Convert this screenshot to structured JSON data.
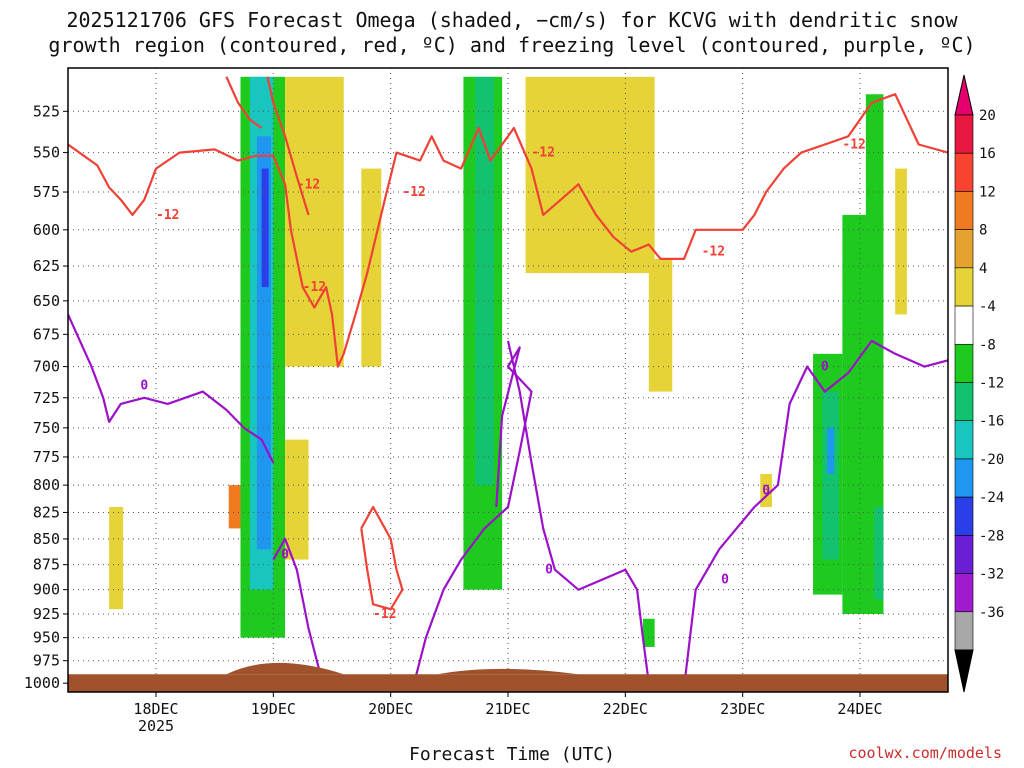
{
  "title_line1": "2025121706 GFS Forecast Omega (shaded, −cm/s) for KCVG with dendritic snow",
  "title_line2": "growth region (contoured, red, ºC) and freezing level (contoured, purple, ºC)",
  "credit": "coolwx.com/models",
  "chart_data": {
    "type": "heatmap",
    "xlabel": "Forecast Time (UTC)",
    "ylabel": "",
    "x_ticks": [
      {
        "label": "18DEC",
        "sub": "2025",
        "day": 1.0
      },
      {
        "label": "19DEC",
        "sub": "",
        "day": 2.0
      },
      {
        "label": "20DEC",
        "sub": "",
        "day": 3.0
      },
      {
        "label": "21DEC",
        "sub": "",
        "day": 4.0
      },
      {
        "label": "22DEC",
        "sub": "",
        "day": 5.0
      },
      {
        "label": "23DEC",
        "sub": "",
        "day": 6.0
      },
      {
        "label": "24DEC",
        "sub": "",
        "day": 7.0
      }
    ],
    "xlim_days_from_17DEC00Z": [
      0.25,
      7.75
    ],
    "y_ticks_hPa": [
      525,
      550,
      575,
      600,
      625,
      650,
      675,
      700,
      725,
      750,
      775,
      800,
      825,
      850,
      875,
      900,
      925,
      950,
      975,
      1000
    ],
    "ylim_hPa": [
      500,
      1010
    ],
    "y_scale": "log pressure",
    "grid": "dotted",
    "colorbar": {
      "labels": [
        "20",
        "16",
        "12",
        "8",
        "4",
        "-4",
        "-8",
        "-12",
        "-16",
        "-20",
        "-24",
        "-28",
        "-32",
        "-36"
      ],
      "colors": [
        "#e8173f",
        "#f7432f",
        "#f07a20",
        "#e4a22e",
        "#e6d337",
        "#ffffff",
        "#1fca1f",
        "#13c26e",
        "#19c6bf",
        "#1f97f0",
        "#2a3fe8",
        "#6a1fd6",
        "#a01bcf",
        "#a8a8a8"
      ],
      "top_arrow_color": "#e6006e",
      "bottom_arrow_color": "#000000"
    },
    "omega_regions": [
      {
        "color": "#1fca1f",
        "t0": 1.72,
        "t1": 2.1,
        "p0": 505,
        "p1": 950
      },
      {
        "color": "#19c6bf",
        "t0": 1.8,
        "t1": 2.0,
        "p0": 505,
        "p1": 900
      },
      {
        "color": "#1f97f0",
        "t0": 1.86,
        "t1": 1.98,
        "p0": 540,
        "p1": 860
      },
      {
        "color": "#2a3fe8",
        "t0": 1.9,
        "t1": 1.96,
        "p0": 560,
        "p1": 640
      },
      {
        "color": "#e6d337",
        "t0": 2.1,
        "t1": 2.6,
        "p0": 505,
        "p1": 700
      },
      {
        "color": "#e6d337",
        "t0": 2.75,
        "t1": 2.92,
        "p0": 560,
        "p1": 700
      },
      {
        "color": "#1fca1f",
        "t0": 3.62,
        "t1": 3.95,
        "p0": 505,
        "p1": 900
      },
      {
        "color": "#13c26e",
        "t0": 3.72,
        "t1": 3.88,
        "p0": 505,
        "p1": 800
      },
      {
        "color": "#e6d337",
        "t0": 4.15,
        "t1": 5.25,
        "p0": 505,
        "p1": 630
      },
      {
        "color": "#e6d337",
        "t0": 5.2,
        "t1": 5.4,
        "p0": 620,
        "p1": 720
      },
      {
        "color": "#1fca1f",
        "t0": 6.6,
        "t1": 6.85,
        "p0": 690,
        "p1": 905
      },
      {
        "color": "#13c26e",
        "t0": 6.68,
        "t1": 6.82,
        "p0": 720,
        "p1": 870
      },
      {
        "color": "#1f97f0",
        "t0": 6.72,
        "t1": 6.78,
        "p0": 750,
        "p1": 790
      },
      {
        "color": "#1fca1f",
        "t0": 6.85,
        "t1": 7.2,
        "p0": 590,
        "p1": 925
      },
      {
        "color": "#13c26e",
        "t0": 7.12,
        "t1": 7.2,
        "p0": 820,
        "p1": 910
      },
      {
        "color": "#1fca1f",
        "t0": 7.05,
        "t1": 7.2,
        "p0": 515,
        "p1": 600
      },
      {
        "color": "#e6d337",
        "t0": 7.3,
        "t1": 7.4,
        "p0": 560,
        "p1": 660
      },
      {
        "color": "#e6d337",
        "t0": 0.6,
        "t1": 0.72,
        "p0": 820,
        "p1": 920
      },
      {
        "color": "#e6d337",
        "t0": 2.1,
        "t1": 2.3,
        "p0": 760,
        "p1": 870
      },
      {
        "color": "#f07a20",
        "t0": 1.62,
        "t1": 1.72,
        "p0": 800,
        "p1": 840
      },
      {
        "color": "#e6d337",
        "t0": 6.15,
        "t1": 6.25,
        "p0": 790,
        "p1": 820
      },
      {
        "color": "#1fca1f",
        "t0": 5.15,
        "t1": 5.25,
        "p0": 930,
        "p1": 960
      }
    ],
    "red_contour_label": "-12",
    "red_contours": [
      {
        "points": [
          [
            0.25,
            545
          ],
          [
            0.5,
            558
          ],
          [
            0.6,
            572
          ],
          [
            0.7,
            580
          ],
          [
            0.8,
            590
          ],
          [
            0.9,
            580
          ],
          [
            1.0,
            560
          ],
          [
            1.2,
            550
          ],
          [
            1.5,
            548
          ],
          [
            1.7,
            555
          ],
          [
            1.85,
            552
          ],
          [
            2.0,
            552
          ],
          [
            2.1,
            570
          ],
          [
            2.15,
            600
          ],
          [
            2.25,
            640
          ],
          [
            2.35,
            655
          ],
          [
            2.45,
            640
          ],
          [
            2.5,
            660
          ],
          [
            2.55,
            700
          ],
          [
            2.6,
            690
          ],
          [
            2.7,
            660
          ],
          [
            2.8,
            630
          ],
          [
            2.95,
            580
          ],
          [
            3.05,
            550
          ],
          [
            3.25,
            555
          ],
          [
            3.35,
            540
          ],
          [
            3.45,
            555
          ],
          [
            3.6,
            560
          ],
          [
            3.75,
            535
          ],
          [
            3.85,
            555
          ],
          [
            3.95,
            545
          ],
          [
            4.05,
            535
          ],
          [
            4.2,
            560
          ],
          [
            4.3,
            590
          ],
          [
            4.45,
            580
          ],
          [
            4.6,
            570
          ],
          [
            4.75,
            590
          ],
          [
            4.9,
            605
          ],
          [
            5.05,
            615
          ],
          [
            5.2,
            610
          ],
          [
            5.3,
            620
          ],
          [
            5.5,
            620
          ],
          [
            5.55,
            610
          ],
          [
            5.6,
            600
          ],
          [
            6.0,
            600
          ],
          [
            6.1,
            590
          ],
          [
            6.2,
            575
          ],
          [
            6.35,
            560
          ],
          [
            6.5,
            550
          ],
          [
            6.7,
            545
          ],
          [
            6.9,
            540
          ],
          [
            7.1,
            520
          ],
          [
            7.3,
            515
          ],
          [
            7.5,
            545
          ],
          [
            7.75,
            550
          ]
        ],
        "labels": [
          [
            1.1,
            590
          ],
          [
            2.3,
            570
          ],
          [
            3.2,
            575
          ],
          [
            4.3,
            550
          ],
          [
            5.75,
            615
          ],
          [
            6.95,
            545
          ]
        ]
      },
      {
        "points": [
          [
            1.95,
            505
          ],
          [
            2.0,
            520
          ],
          [
            2.1,
            540
          ],
          [
            2.2,
            565
          ],
          [
            2.3,
            590
          ]
        ],
        "labels": [
          [
            2.35,
            640
          ]
        ]
      },
      {
        "points": [
          [
            2.75,
            840
          ],
          [
            2.85,
            820
          ],
          [
            3.0,
            850
          ],
          [
            3.05,
            880
          ],
          [
            3.1,
            900
          ],
          [
            3.0,
            920
          ],
          [
            2.85,
            915
          ],
          [
            2.8,
            880
          ],
          [
            2.75,
            840
          ]
        ],
        "labels": [
          [
            2.95,
            925
          ]
        ]
      },
      {
        "points": [
          [
            1.6,
            505
          ],
          [
            1.7,
            520
          ],
          [
            1.8,
            530
          ],
          [
            1.9,
            535
          ]
        ],
        "labels": []
      }
    ],
    "purple_contour_label": "0",
    "purple_contours": [
      {
        "points": [
          [
            0.25,
            660
          ],
          [
            0.45,
            700
          ],
          [
            0.55,
            725
          ],
          [
            0.6,
            745
          ],
          [
            0.7,
            730
          ],
          [
            0.9,
            725
          ],
          [
            1.1,
            730
          ],
          [
            1.4,
            720
          ],
          [
            1.6,
            735
          ],
          [
            1.75,
            750
          ],
          [
            1.9,
            760
          ],
          [
            2.0,
            780
          ]
        ],
        "labels": [
          [
            0.9,
            715
          ]
        ]
      },
      {
        "points": [
          [
            2.0,
            870
          ],
          [
            2.1,
            850
          ],
          [
            2.2,
            880
          ],
          [
            2.3,
            940
          ],
          [
            2.4,
            990
          ]
        ],
        "labels": [
          [
            2.1,
            865
          ]
        ]
      },
      {
        "points": [
          [
            3.2,
            1000
          ],
          [
            3.3,
            950
          ],
          [
            3.45,
            900
          ],
          [
            3.6,
            870
          ],
          [
            3.8,
            840
          ],
          [
            4.0,
            820
          ],
          [
            4.1,
            770
          ],
          [
            4.2,
            720
          ],
          [
            4.0,
            700
          ],
          [
            4.1,
            685
          ],
          [
            3.95,
            740
          ],
          [
            3.9,
            820
          ]
        ],
        "labels": []
      },
      {
        "points": [
          [
            4.0,
            680
          ],
          [
            4.1,
            720
          ],
          [
            4.2,
            780
          ],
          [
            4.3,
            840
          ],
          [
            4.4,
            880
          ],
          [
            4.6,
            900
          ],
          [
            4.8,
            890
          ],
          [
            5.0,
            880
          ],
          [
            5.1,
            900
          ],
          [
            5.15,
            950
          ],
          [
            5.2,
            1000
          ]
        ],
        "labels": [
          [
            4.35,
            880
          ]
        ]
      },
      {
        "points": [
          [
            5.5,
            1005
          ],
          [
            5.6,
            900
          ],
          [
            5.8,
            860
          ],
          [
            6.1,
            820
          ],
          [
            6.3,
            800
          ],
          [
            6.4,
            730
          ],
          [
            6.55,
            700
          ],
          [
            6.7,
            720
          ],
          [
            6.9,
            705
          ],
          [
            7.1,
            680
          ],
          [
            7.3,
            690
          ],
          [
            7.55,
            700
          ],
          [
            7.75,
            695
          ]
        ],
        "labels": [
          [
            5.85,
            890
          ],
          [
            6.2,
            805
          ],
          [
            6.7,
            700
          ]
        ]
      }
    ],
    "terrain_color": "#a0522d"
  }
}
